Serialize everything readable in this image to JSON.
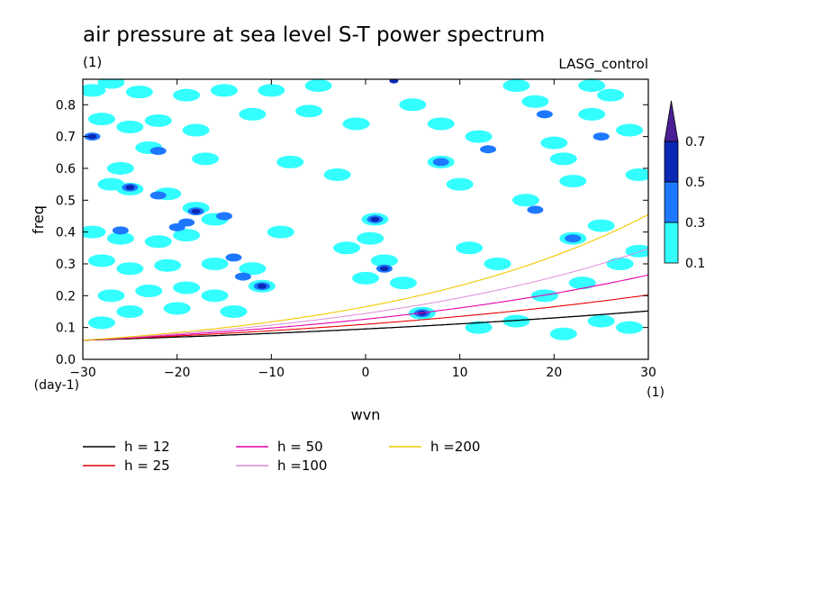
{
  "chart_data": {
    "type": "heatmap",
    "title": "air pressure at sea level S-T power spectrum",
    "subtitle_left": "(1)",
    "subtitle_right": "LASG_control",
    "xlabel": "wvn",
    "ylabel": "freq",
    "x_unit": "(1)",
    "y_unit": "(day-1)",
    "xlim": [
      -30,
      30
    ],
    "ylim": [
      0.0,
      0.88
    ],
    "xticks": [
      -30,
      -20,
      -10,
      0,
      10,
      20,
      30
    ],
    "xtick_labels": [
      "−30",
      "−20",
      "−10",
      "0",
      "10",
      "20",
      "30"
    ],
    "yticks": [
      0.0,
      0.1,
      0.2,
      0.3,
      0.4,
      0.5,
      0.6,
      0.7,
      0.8
    ],
    "ytick_labels": [
      "0.0",
      "0.1",
      "0.2",
      "0.3",
      "0.4",
      "0.5",
      "0.6",
      "0.7",
      "0.8"
    ],
    "colorbar": {
      "levels": [
        0.1,
        0.3,
        0.5,
        0.7
      ],
      "labels": [
        "0.1",
        "0.3",
        "0.5",
        "0.7"
      ],
      "colors": [
        "#33ffff",
        "#1e78ff",
        "#0a28b4",
        "#4b1e96"
      ]
    },
    "contour_patches": [
      {
        "x": -29,
        "y": 0.845,
        "level": 0.1
      },
      {
        "x": -27,
        "y": 0.87,
        "level": 0.1
      },
      {
        "x": -24,
        "y": 0.84,
        "level": 0.1
      },
      {
        "x": -19,
        "y": 0.83,
        "level": 0.1
      },
      {
        "x": -15,
        "y": 0.845,
        "level": 0.1
      },
      {
        "x": -10,
        "y": 0.845,
        "level": 0.1
      },
      {
        "x": -5,
        "y": 0.86,
        "level": 0.1
      },
      {
        "x": -28,
        "y": 0.755,
        "level": 0.1
      },
      {
        "x": -25,
        "y": 0.73,
        "level": 0.1
      },
      {
        "x": -22,
        "y": 0.75,
        "level": 0.1
      },
      {
        "x": -18,
        "y": 0.72,
        "level": 0.1
      },
      {
        "x": -12,
        "y": 0.77,
        "level": 0.1
      },
      {
        "x": -29,
        "y": 0.7,
        "level": 0.3
      },
      {
        "x": -29,
        "y": 0.7,
        "level": 0.5
      },
      {
        "x": -26,
        "y": 0.6,
        "level": 0.1
      },
      {
        "x": -23,
        "y": 0.665,
        "level": 0.1
      },
      {
        "x": -17,
        "y": 0.63,
        "level": 0.1
      },
      {
        "x": -22,
        "y": 0.655,
        "level": 0.3
      },
      {
        "x": -27,
        "y": 0.55,
        "level": 0.1
      },
      {
        "x": -25,
        "y": 0.535,
        "level": 0.1
      },
      {
        "x": -21,
        "y": 0.52,
        "level": 0.1
      },
      {
        "x": -18,
        "y": 0.475,
        "level": 0.1
      },
      {
        "x": -16,
        "y": 0.44,
        "level": 0.1
      },
      {
        "x": -25,
        "y": 0.54,
        "level": 0.3
      },
      {
        "x": -25,
        "y": 0.54,
        "level": 0.5
      },
      {
        "x": -22,
        "y": 0.515,
        "level": 0.3
      },
      {
        "x": -18,
        "y": 0.465,
        "level": 0.3
      },
      {
        "x": -18,
        "y": 0.465,
        "level": 0.5
      },
      {
        "x": -15,
        "y": 0.45,
        "level": 0.3
      },
      {
        "x": -19,
        "y": 0.43,
        "level": 0.3
      },
      {
        "x": -29,
        "y": 0.4,
        "level": 0.1
      },
      {
        "x": -26,
        "y": 0.38,
        "level": 0.1
      },
      {
        "x": -22,
        "y": 0.37,
        "level": 0.1
      },
      {
        "x": -19,
        "y": 0.39,
        "level": 0.1
      },
      {
        "x": -26,
        "y": 0.405,
        "level": 0.3
      },
      {
        "x": -20,
        "y": 0.415,
        "level": 0.3
      },
      {
        "x": -28,
        "y": 0.31,
        "level": 0.1
      },
      {
        "x": -25,
        "y": 0.285,
        "level": 0.1
      },
      {
        "x": -21,
        "y": 0.295,
        "level": 0.1
      },
      {
        "x": -16,
        "y": 0.3,
        "level": 0.1
      },
      {
        "x": -14,
        "y": 0.32,
        "level": 0.3
      },
      {
        "x": -12,
        "y": 0.285,
        "level": 0.1
      },
      {
        "x": -11,
        "y": 0.23,
        "level": 0.1
      },
      {
        "x": -11,
        "y": 0.23,
        "level": 0.3
      },
      {
        "x": -11,
        "y": 0.23,
        "level": 0.5
      },
      {
        "x": -13,
        "y": 0.26,
        "level": 0.3
      },
      {
        "x": -27,
        "y": 0.2,
        "level": 0.1
      },
      {
        "x": -23,
        "y": 0.215,
        "level": 0.1
      },
      {
        "x": -19,
        "y": 0.225,
        "level": 0.1
      },
      {
        "x": -16,
        "y": 0.2,
        "level": 0.1
      },
      {
        "x": -25,
        "y": 0.15,
        "level": 0.1
      },
      {
        "x": -20,
        "y": 0.16,
        "level": 0.1
      },
      {
        "x": -14,
        "y": 0.15,
        "level": 0.1
      },
      {
        "x": -28,
        "y": 0.115,
        "level": 0.1
      },
      {
        "x": -6,
        "y": 0.78,
        "level": 0.1
      },
      {
        "x": -1,
        "y": 0.74,
        "level": 0.1
      },
      {
        "x": -8,
        "y": 0.62,
        "level": 0.1
      },
      {
        "x": -3,
        "y": 0.58,
        "level": 0.1
      },
      {
        "x": -9,
        "y": 0.4,
        "level": 0.1
      },
      {
        "x": -2,
        "y": 0.35,
        "level": 0.1
      },
      {
        "x": 1,
        "y": 0.44,
        "level": 0.1
      },
      {
        "x": 1,
        "y": 0.44,
        "level": 0.3
      },
      {
        "x": 1,
        "y": 0.44,
        "level": 0.5
      },
      {
        "x": 0.5,
        "y": 0.38,
        "level": 0.1
      },
      {
        "x": 2,
        "y": 0.31,
        "level": 0.1
      },
      {
        "x": 2,
        "y": 0.285,
        "level": 0.3
      },
      {
        "x": 2,
        "y": 0.285,
        "level": 0.5
      },
      {
        "x": 0,
        "y": 0.255,
        "level": 0.1
      },
      {
        "x": 4,
        "y": 0.24,
        "level": 0.1
      },
      {
        "x": 6,
        "y": 0.145,
        "level": 0.1
      },
      {
        "x": 6,
        "y": 0.145,
        "level": 0.3
      },
      {
        "x": 6,
        "y": 0.145,
        "level": 0.5
      },
      {
        "x": 3,
        "y": 0.875,
        "level": 0.5
      },
      {
        "x": 5,
        "y": 0.8,
        "level": 0.1
      },
      {
        "x": 8,
        "y": 0.74,
        "level": 0.1
      },
      {
        "x": 8,
        "y": 0.62,
        "level": 0.1
      },
      {
        "x": 8,
        "y": 0.62,
        "level": 0.3
      },
      {
        "x": 10,
        "y": 0.55,
        "level": 0.1
      },
      {
        "x": 12,
        "y": 0.7,
        "level": 0.1
      },
      {
        "x": 13,
        "y": 0.66,
        "level": 0.3
      },
      {
        "x": 11,
        "y": 0.35,
        "level": 0.1
      },
      {
        "x": 14,
        "y": 0.3,
        "level": 0.1
      },
      {
        "x": 16,
        "y": 0.86,
        "level": 0.1
      },
      {
        "x": 18,
        "y": 0.81,
        "level": 0.1
      },
      {
        "x": 19,
        "y": 0.77,
        "level": 0.3
      },
      {
        "x": 20,
        "y": 0.68,
        "level": 0.1
      },
      {
        "x": 21,
        "y": 0.63,
        "level": 0.1
      },
      {
        "x": 22,
        "y": 0.56,
        "level": 0.1
      },
      {
        "x": 17,
        "y": 0.5,
        "level": 0.1
      },
      {
        "x": 18,
        "y": 0.47,
        "level": 0.3
      },
      {
        "x": 22,
        "y": 0.38,
        "level": 0.1
      },
      {
        "x": 22,
        "y": 0.38,
        "level": 0.3
      },
      {
        "x": 25,
        "y": 0.42,
        "level": 0.1
      },
      {
        "x": 19,
        "y": 0.2,
        "level": 0.1
      },
      {
        "x": 23,
        "y": 0.24,
        "level": 0.1
      },
      {
        "x": 27,
        "y": 0.3,
        "level": 0.1
      },
      {
        "x": 29,
        "y": 0.34,
        "level": 0.1
      },
      {
        "x": 24,
        "y": 0.86,
        "level": 0.1
      },
      {
        "x": 26,
        "y": 0.83,
        "level": 0.1
      },
      {
        "x": 28,
        "y": 0.72,
        "level": 0.1
      },
      {
        "x": 24,
        "y": 0.77,
        "level": 0.1
      },
      {
        "x": 25,
        "y": 0.7,
        "level": 0.3
      },
      {
        "x": 25,
        "y": 0.12,
        "level": 0.1
      },
      {
        "x": 28,
        "y": 0.1,
        "level": 0.1
      },
      {
        "x": 21,
        "y": 0.08,
        "level": 0.1
      },
      {
        "x": 16,
        "y": 0.12,
        "level": 0.1
      },
      {
        "x": 12,
        "y": 0.1,
        "level": 0.1
      },
      {
        "x": 29,
        "y": 0.58,
        "level": 0.1
      }
    ],
    "series": [
      {
        "name": "h = 12",
        "h": 12,
        "color": "#000000",
        "width": 1.3
      },
      {
        "name": "h = 25",
        "h": 25,
        "color": "#e60000",
        "width": 1.1
      },
      {
        "name": "h = 50",
        "h": 50,
        "color": "#e600aa",
        "width": 1.1
      },
      {
        "name": "h =100",
        "h": 100,
        "color": "#dc8cdc",
        "width": 1.0
      },
      {
        "name": "h =200",
        "h": 200,
        "color": "#f0c800",
        "width": 1.1
      }
    ]
  }
}
